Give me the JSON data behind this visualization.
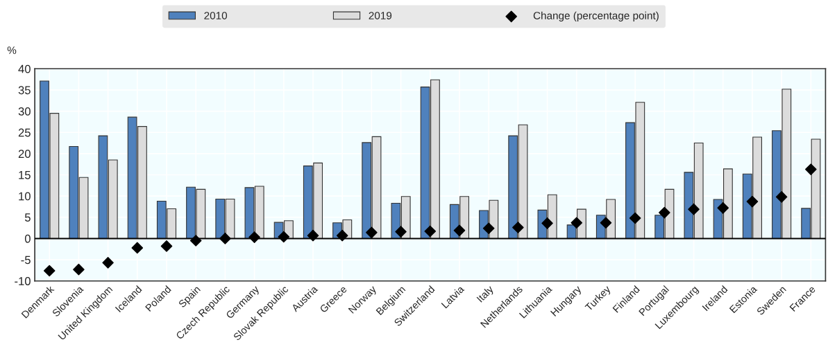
{
  "chart_data": {
    "type": "bar",
    "ylabel": "%",
    "categories": [
      "Denmark",
      "Slovenia",
      "United Kingdom",
      "Iceland",
      "Poland",
      "Spain",
      "Czech Republic",
      "Germany",
      "Slovak Republic",
      "Austria",
      "Greece",
      "Norway",
      "Belgium",
      "Switzerland",
      "Latvia",
      "Italy",
      "Netherlands",
      "Lithuania",
      "Hungary",
      "Turkey",
      "Finland",
      "Portugal",
      "Luxembourg",
      "Ireland",
      "Estonia",
      "Sweden",
      "France"
    ],
    "series": [
      {
        "name": "2010",
        "color": "#4f81bd",
        "values": [
          37.1,
          21.7,
          24.2,
          28.6,
          8.8,
          12.1,
          9.3,
          12.0,
          3.8,
          17.1,
          3.7,
          22.6,
          8.3,
          35.7,
          8.0,
          6.6,
          24.2,
          6.7,
          3.2,
          5.5,
          27.3,
          5.5,
          15.6,
          9.2,
          15.2,
          25.4,
          7.1
        ]
      },
      {
        "name": "2019",
        "color": "#dcdcdc",
        "values": [
          29.5,
          14.4,
          18.5,
          26.4,
          7.0,
          11.6,
          9.3,
          12.3,
          4.2,
          17.8,
          4.4,
          24.0,
          9.9,
          37.4,
          9.9,
          9.0,
          26.8,
          10.3,
          6.9,
          9.2,
          32.1,
          11.6,
          22.5,
          16.4,
          23.9,
          35.2,
          23.4
        ]
      },
      {
        "name": "Change (percentage point)",
        "type": "scatter",
        "color": "#000000",
        "marker": "diamond",
        "values": [
          -7.6,
          -7.3,
          -5.7,
          -2.2,
          -1.8,
          -0.5,
          0.0,
          0.3,
          0.4,
          0.7,
          0.7,
          1.4,
          1.6,
          1.7,
          1.9,
          2.4,
          2.6,
          3.6,
          3.7,
          3.7,
          4.8,
          6.1,
          6.9,
          7.2,
          8.7,
          9.8,
          16.3
        ]
      }
    ],
    "ylim": [
      -10,
      40
    ],
    "yticks": [
      -10,
      -5,
      0,
      5,
      10,
      15,
      20,
      25,
      30,
      35,
      40
    ],
    "grid": true,
    "legend": "top"
  }
}
